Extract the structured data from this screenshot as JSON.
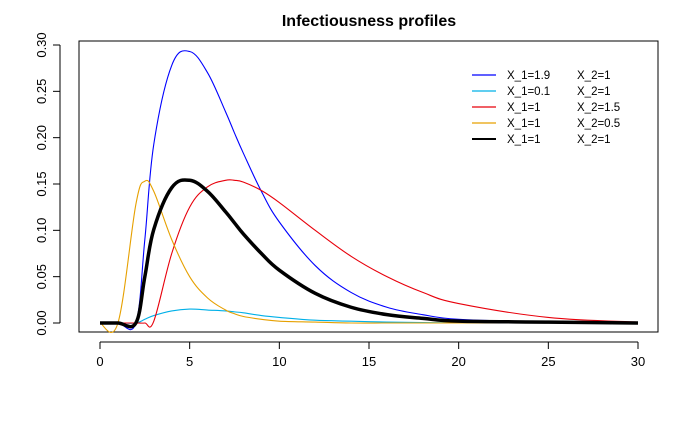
{
  "chart_data": {
    "type": "line",
    "title": "Infectiousness profiles",
    "xlabel": "",
    "ylabel": "",
    "xlim": [
      0,
      30
    ],
    "ylim": [
      0,
      0.3
    ],
    "x_ticks": [
      "0",
      "5",
      "10",
      "15",
      "20",
      "25",
      "30"
    ],
    "y_ticks": [
      "0.00",
      "0.05",
      "0.10",
      "0.15",
      "0.20",
      "0.25",
      "0.30"
    ],
    "grid": false,
    "legend_position": "top-right",
    "x": [
      0,
      1,
      2,
      2.5,
      3,
      4,
      5,
      6,
      7,
      7.5,
      8,
      9,
      10,
      12,
      14,
      16,
      18,
      20,
      25,
      30
    ],
    "series": [
      {
        "label_x1": "X_1=1.9",
        "label_x2": "X_2=1",
        "color": "#0000ff",
        "line_width": "thin",
        "values": [
          0,
          0,
          0,
          0.09,
          0.193,
          0.278,
          0.293,
          0.27,
          0.228,
          0.205,
          0.183,
          0.142,
          0.109,
          0.062,
          0.033,
          0.017,
          0.009,
          0.004,
          0.001,
          0
        ]
      },
      {
        "label_x1": "X_1=0.1",
        "label_x2": "X_2=1",
        "color": "#00b0e8",
        "line_width": "thin",
        "values": [
          0,
          0,
          0,
          0.004,
          0.008,
          0.013,
          0.015,
          0.014,
          0.013,
          0.012,
          0.011,
          0.008,
          0.006,
          0.003,
          0.002,
          0.001,
          0.0005,
          0.0002,
          0,
          0
        ]
      },
      {
        "label_x1": "X_1=1",
        "label_x2": "X_2=1.5",
        "color": "#e8000b",
        "line_width": "thin",
        "values": [
          0,
          0,
          0,
          0,
          0.002,
          0.075,
          0.125,
          0.147,
          0.154,
          0.154,
          0.152,
          0.143,
          0.13,
          0.1,
          0.072,
          0.05,
          0.033,
          0.021,
          0.006,
          0.001
        ]
      },
      {
        "label_x1": "X_1=1",
        "label_x2": "X_2=0.5",
        "color": "#e6a000",
        "line_width": "thin",
        "values": [
          0,
          0,
          0.128,
          0.153,
          0.142,
          0.09,
          0.05,
          0.027,
          0.014,
          0.01,
          0.007,
          0.004,
          0.002,
          0.001,
          0,
          0,
          0,
          0,
          0,
          0
        ]
      },
      {
        "label_x1": "X_1=1",
        "label_x2": "X_2=1",
        "color": "#000000",
        "line_width": "thick",
        "values": [
          0,
          0,
          0,
          0.05,
          0.101,
          0.146,
          0.154,
          0.142,
          0.12,
          0.108,
          0.096,
          0.075,
          0.057,
          0.032,
          0.017,
          0.009,
          0.005,
          0.002,
          0.001,
          0
        ]
      }
    ]
  }
}
